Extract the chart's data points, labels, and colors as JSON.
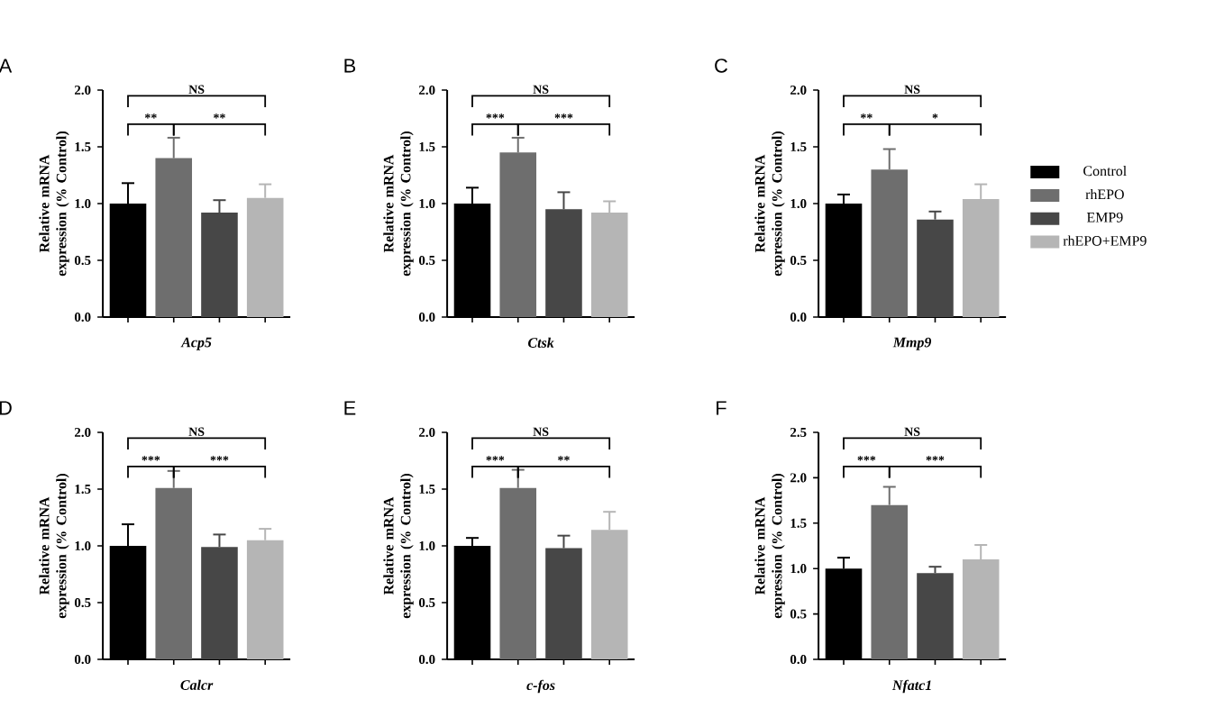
{
  "chart_data": [
    {
      "type": "bar",
      "title": "A",
      "xlabel": "Acp5",
      "ylabel": "Relative mRNA expression (% Control)",
      "categories": [
        null,
        null,
        null,
        null
      ],
      "ylim": [
        0,
        2.0
      ],
      "yticks": [
        {
          "value": 0,
          "label": "0.0"
        },
        0.5,
        {
          "value": 1,
          "label": "1.0"
        },
        1.5,
        {
          "value": 2,
          "label": "2.0"
        }
      ],
      "annotations": [
        "NS",
        "**",
        "**"
      ],
      "series": [
        {
          "color": "#000000",
          "values": [
            1.0,
            null,
            null,
            null
          ],
          "errors": [
            0.18,
            null,
            null,
            null
          ]
        },
        {
          "color": "#6e6e6e",
          "values": [
            null,
            1.4,
            null,
            null
          ],
          "errors": [
            null,
            0.18,
            null,
            null
          ]
        },
        {
          "color": "#474747",
          "values": [
            null,
            null,
            0.92,
            null
          ],
          "errors": [
            null,
            null,
            0.11,
            null
          ]
        },
        {
          "color": "#b5b5b5",
          "values": [
            null,
            null,
            null,
            1.05
          ],
          "errors": [
            null,
            null,
            null,
            0.12
          ]
        }
      ]
    },
    {
      "type": "bar",
      "title": "B",
      "xlabel": "Ctsk",
      "ylabel": "Relative mRNA expression (% Control)",
      "categories": [
        null,
        null,
        null,
        null
      ],
      "ylim": [
        0,
        2.0
      ],
      "yticks": [
        {
          "value": 0,
          "label": "0.0"
        },
        0.5,
        {
          "value": 1,
          "label": "1.0"
        },
        1.5,
        {
          "value": 2,
          "label": "2.0"
        }
      ],
      "annotations": [
        "NS",
        "***",
        "***"
      ],
      "series": [
        {
          "color": "#000000",
          "values": [
            1.0,
            null,
            null,
            null
          ],
          "errors": [
            0.14,
            null,
            null,
            null
          ]
        },
        {
          "color": "#6e6e6e",
          "values": [
            null,
            1.45,
            null,
            null
          ],
          "errors": [
            null,
            0.13,
            null,
            null
          ]
        },
        {
          "color": "#474747",
          "values": [
            null,
            null,
            0.95,
            null
          ],
          "errors": [
            null,
            null,
            0.15,
            null
          ]
        },
        {
          "color": "#b5b5b5",
          "values": [
            null,
            null,
            null,
            0.92
          ],
          "errors": [
            null,
            null,
            null,
            0.1
          ]
        }
      ]
    },
    {
      "type": "bar",
      "title": "C",
      "xlabel": "Mmp9",
      "ylabel": "Relative mRNA expression (% Control)",
      "categories": [
        null,
        null,
        null,
        null
      ],
      "ylim": [
        0,
        2.0
      ],
      "yticks": [
        {
          "value": 0,
          "label": "0.0"
        },
        0.5,
        {
          "value": 1,
          "label": "1.0"
        },
        1.5,
        {
          "value": 2,
          "label": "2.0"
        }
      ],
      "annotations": [
        "NS",
        "**",
        "*"
      ],
      "legend": "right",
      "series": [
        {
          "name": "Control",
          "color": "#000000",
          "values": [
            1.0,
            null,
            null,
            null
          ],
          "errors": [
            0.08,
            null,
            null,
            null
          ]
        },
        {
          "name": "rhEPO",
          "color": "#6e6e6e",
          "values": [
            null,
            1.3,
            null,
            null
          ],
          "errors": [
            null,
            0.18,
            null,
            null
          ]
        },
        {
          "name": "EMP9",
          "color": "#474747",
          "values": [
            null,
            null,
            0.86,
            null
          ],
          "errors": [
            null,
            null,
            0.07,
            null
          ]
        },
        {
          "name": "rhEPO+EMP9",
          "color": "#b5b5b5",
          "values": [
            null,
            null,
            null,
            1.04
          ],
          "errors": [
            null,
            null,
            null,
            0.13
          ]
        }
      ]
    },
    {
      "type": "bar",
      "title": "D",
      "xlabel": "Calcr",
      "ylabel": "Relative mRNA expression (% Control)",
      "categories": [
        null,
        null,
        null,
        null
      ],
      "ylim": [
        0,
        2.0
      ],
      "yticks": [
        {
          "value": 0,
          "label": "0.0"
        },
        0.5,
        {
          "value": 1,
          "label": "1.0"
        },
        1.5,
        {
          "value": 2,
          "label": "2.0"
        }
      ],
      "annotations": [
        "NS",
        "***",
        "***"
      ],
      "series": [
        {
          "color": "#000000",
          "values": [
            1.0,
            null,
            null,
            null
          ],
          "errors": [
            0.19,
            null,
            null,
            null
          ]
        },
        {
          "color": "#6e6e6e",
          "values": [
            null,
            1.51,
            null,
            null
          ],
          "errors": [
            null,
            0.15,
            null,
            null
          ]
        },
        {
          "color": "#474747",
          "values": [
            null,
            null,
            0.99,
            null
          ],
          "errors": [
            null,
            null,
            0.11,
            null
          ]
        },
        {
          "color": "#b5b5b5",
          "values": [
            null,
            null,
            null,
            1.05
          ],
          "errors": [
            null,
            null,
            null,
            0.1
          ]
        }
      ]
    },
    {
      "type": "bar",
      "title": "E",
      "xlabel": "c-fos",
      "ylabel": "Relative mRNA expression (% Control)",
      "categories": [
        null,
        null,
        null,
        null
      ],
      "ylim": [
        0,
        2.0
      ],
      "yticks": [
        {
          "value": 0,
          "label": "0.0"
        },
        0.5,
        {
          "value": 1,
          "label": "1.0"
        },
        1.5,
        {
          "value": 2,
          "label": "2.0"
        }
      ],
      "annotations": [
        "NS",
        "***",
        "**"
      ],
      "series": [
        {
          "color": "#000000",
          "values": [
            1.0,
            null,
            null,
            null
          ],
          "errors": [
            0.07,
            null,
            null,
            null
          ]
        },
        {
          "color": "#6e6e6e",
          "values": [
            null,
            1.51,
            null,
            null
          ],
          "errors": [
            null,
            0.16,
            null,
            null
          ]
        },
        {
          "color": "#474747",
          "values": [
            null,
            null,
            0.98,
            null
          ],
          "errors": [
            null,
            null,
            0.11,
            null
          ]
        },
        {
          "color": "#b5b5b5",
          "values": [
            null,
            null,
            null,
            1.14
          ],
          "errors": [
            null,
            null,
            null,
            0.16
          ]
        }
      ]
    },
    {
      "type": "bar",
      "title": "F",
      "xlabel": "Nfatc1",
      "ylabel": "Relative mRNA expression (% Control)",
      "categories": [
        null,
        null,
        null,
        null
      ],
      "ylim": [
        0,
        2.5
      ],
      "yticks": [
        {
          "value": 0,
          "label": "0.0"
        },
        0.5,
        {
          "value": 1,
          "label": "1.0"
        },
        1.5,
        {
          "value": 2,
          "label": "2.0"
        },
        2.5
      ],
      "annotations": [
        "NS",
        "***",
        "***"
      ],
      "series": [
        {
          "color": "#000000",
          "values": [
            1.0,
            null,
            null,
            null
          ],
          "errors": [
            0.12,
            null,
            null,
            null
          ]
        },
        {
          "color": "#6e6e6e",
          "values": [
            null,
            1.7,
            null,
            null
          ],
          "errors": [
            null,
            0.2,
            null,
            null
          ]
        },
        {
          "color": "#474747",
          "values": [
            null,
            null,
            0.95,
            null
          ],
          "errors": [
            null,
            null,
            0.07,
            null
          ]
        },
        {
          "color": "#b5b5b5",
          "values": [
            null,
            null,
            null,
            1.1
          ],
          "errors": [
            null,
            null,
            null,
            0.16
          ]
        }
      ]
    }
  ]
}
